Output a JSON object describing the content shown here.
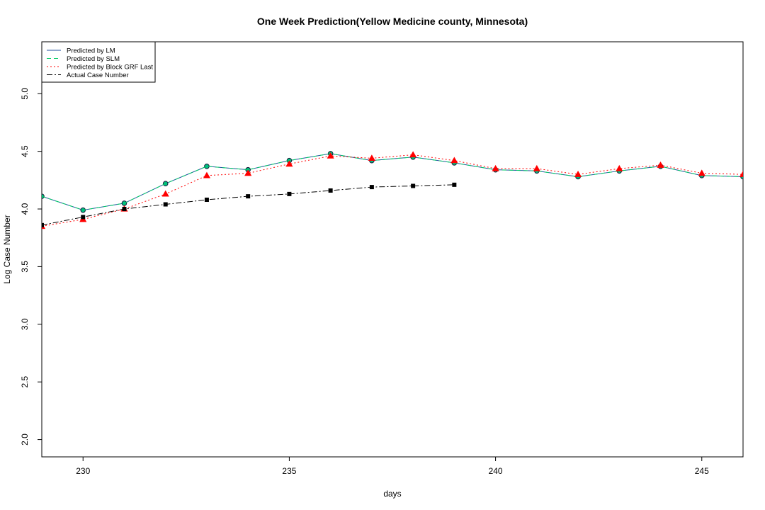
{
  "chart_data": {
    "type": "line",
    "title": "One Week Prediction(Yellow Medicine county, Minnesota)",
    "xlabel": "days",
    "ylabel": "Log Case Number",
    "xlim": [
      229,
      246
    ],
    "ylim": [
      1.85,
      5.45
    ],
    "xticks": [
      230,
      235,
      240,
      245
    ],
    "yticks": [
      2.0,
      2.5,
      3.0,
      3.5,
      4.0,
      4.5,
      5.0
    ],
    "grid": false,
    "legend_position": "top-left",
    "series": [
      {
        "name": "Predicted by LM",
        "color": "#1f4e9e",
        "line_style": "solid",
        "marker": "circle",
        "marker_fill": "#00c080",
        "x": [
          229,
          230,
          231,
          232,
          233,
          234,
          235,
          236,
          237,
          238,
          239,
          240,
          241,
          242,
          243,
          244,
          245,
          246
        ],
        "y": [
          4.11,
          3.99,
          4.05,
          4.22,
          4.37,
          4.34,
          4.42,
          4.48,
          4.42,
          4.45,
          4.4,
          4.34,
          4.33,
          4.28,
          4.33,
          4.37,
          4.29,
          4.28
        ]
      },
      {
        "name": "Predicted by SLM",
        "color": "#00cc66",
        "line_style": "dashed",
        "marker": "none",
        "x": [
          229,
          230,
          231,
          232,
          233,
          234,
          235,
          236,
          237,
          238,
          239,
          240,
          241,
          242,
          243,
          244,
          245,
          246
        ],
        "y": [
          4.11,
          3.99,
          4.05,
          4.22,
          4.37,
          4.34,
          4.42,
          4.48,
          4.42,
          4.45,
          4.4,
          4.34,
          4.33,
          4.28,
          4.33,
          4.37,
          4.29,
          4.28
        ]
      },
      {
        "name": "Predicted by Block GRF Last",
        "color": "#ff0000",
        "line_style": "dotted",
        "marker": "triangle",
        "marker_fill": "#ff0000",
        "x": [
          229,
          230,
          231,
          232,
          233,
          234,
          235,
          236,
          237,
          238,
          239,
          240,
          241,
          242,
          243,
          244,
          245,
          246
        ],
        "y": [
          3.85,
          3.91,
          4.0,
          4.13,
          4.29,
          4.31,
          4.39,
          4.46,
          4.44,
          4.47,
          4.42,
          4.35,
          4.35,
          4.3,
          4.35,
          4.38,
          4.31,
          4.3
        ]
      },
      {
        "name": "Actual Case Number",
        "color": "#000000",
        "line_style": "dashdot",
        "marker": "square",
        "marker_fill": "#000000",
        "x": [
          229,
          230,
          231,
          232,
          233,
          234,
          235,
          236,
          237,
          238,
          239
        ],
        "y": [
          3.86,
          3.93,
          4.0,
          4.04,
          4.08,
          4.11,
          4.13,
          4.16,
          4.19,
          4.2,
          4.21
        ]
      }
    ]
  }
}
